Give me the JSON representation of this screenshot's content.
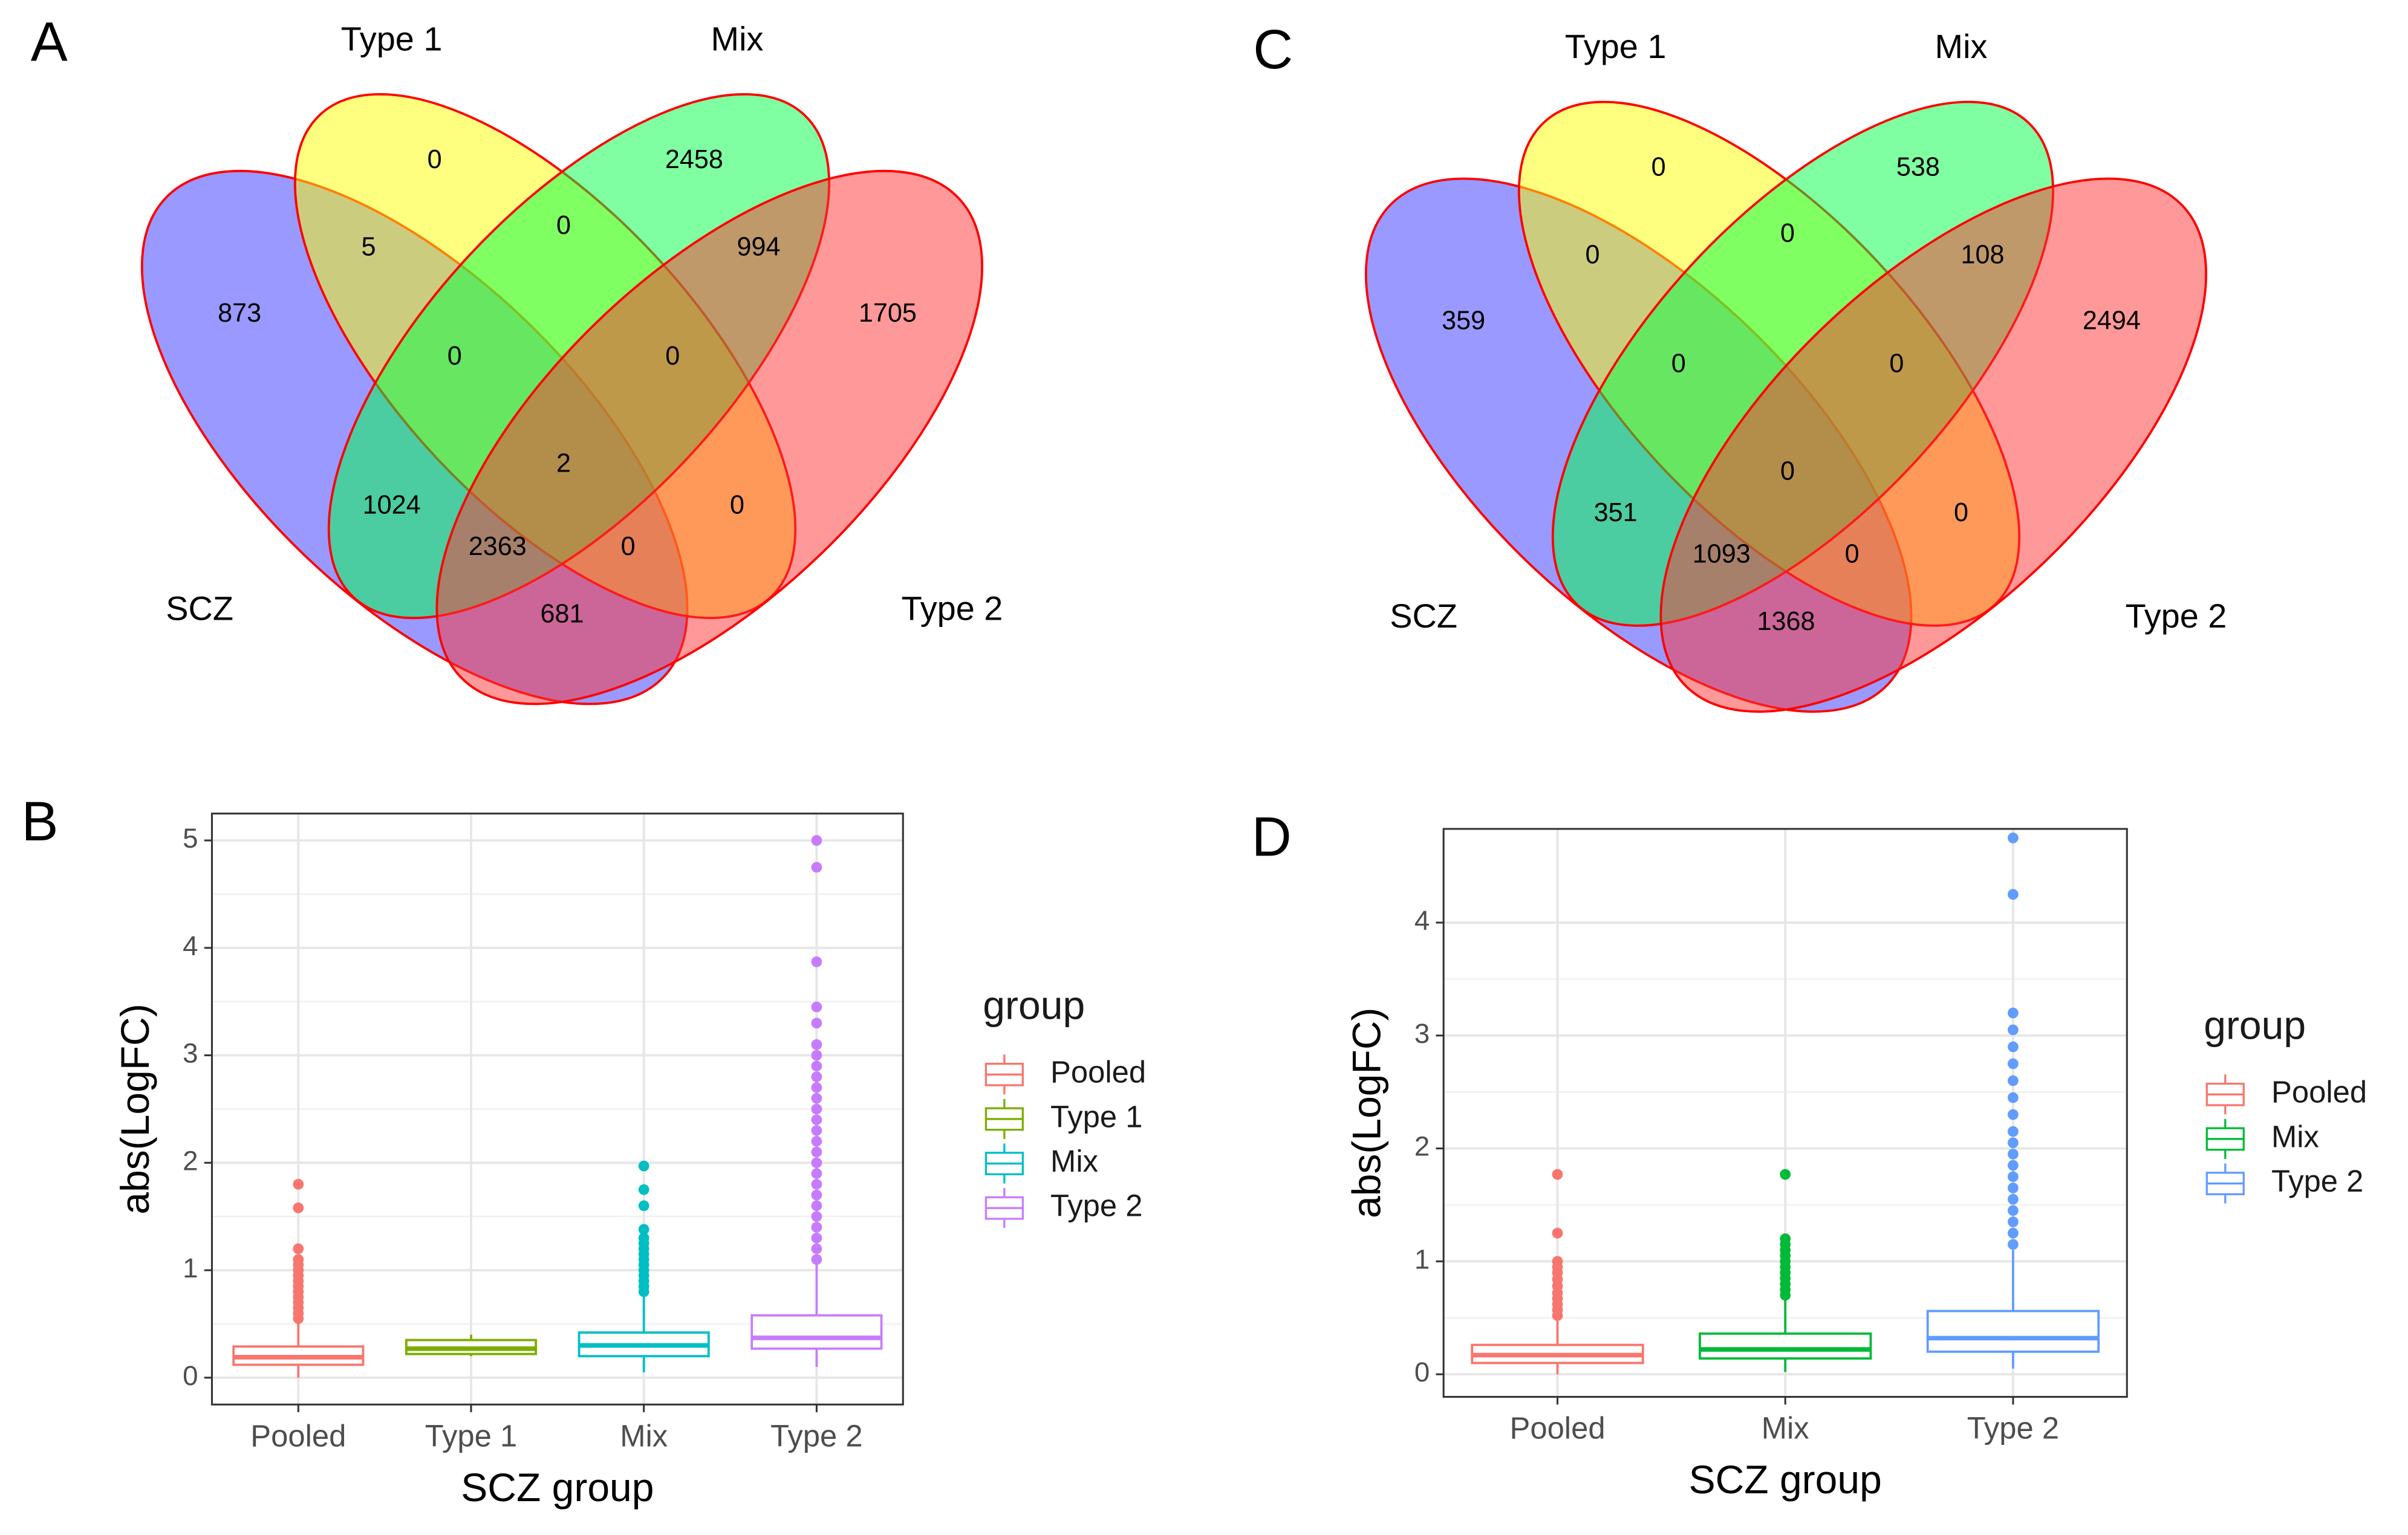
{
  "chart_data": [
    {
      "type": "venn",
      "panel": "A",
      "sets": [
        {
          "name": "SCZ",
          "color": "#3333ff"
        },
        {
          "name": "Type 1",
          "color": "#ffff00"
        },
        {
          "name": "Mix",
          "color": "#00ff44"
        },
        {
          "name": "Type 2",
          "color": "#ff3333"
        }
      ],
      "values": [
        0,
        2458,
        5,
        0,
        994,
        873,
        1705,
        0,
        0,
        2,
        1024,
        0,
        2363,
        0,
        681
      ]
    },
    {
      "type": "venn",
      "panel": "C",
      "sets": [
        {
          "name": "SCZ",
          "color": "#3333ff"
        },
        {
          "name": "Type 1",
          "color": "#ffff00"
        },
        {
          "name": "Mix",
          "color": "#00ff44"
        },
        {
          "name": "Type 2",
          "color": "#ff3333"
        }
      ],
      "values": [
        0,
        538,
        0,
        0,
        108,
        359,
        2494,
        0,
        0,
        0,
        351,
        0,
        1093,
        0,
        1368
      ]
    },
    {
      "type": "box",
      "panel": "B",
      "x_label": "SCZ group",
      "y_label": "abs(LogFC)",
      "legend_title": "group",
      "categories": [
        "Pooled",
        "Type 1",
        "Mix",
        "Type 2"
      ],
      "ylim": [
        -0.25,
        5.25
      ],
      "yticks": [
        0,
        1,
        2,
        3,
        4,
        5
      ],
      "grid": true,
      "series": [
        {
          "name": "Pooled",
          "color": "#f8766d",
          "min": 0,
          "q1": 0.12,
          "median": 0.19,
          "q3": 0.29,
          "max": 0.52,
          "outliers": [
            0.55,
            0.6,
            0.65,
            0.7,
            0.75,
            0.8,
            0.85,
            0.9,
            0.95,
            1.0,
            1.05,
            1.1,
            1.2,
            1.58,
            1.8
          ]
        },
        {
          "name": "Type 1",
          "color": "#7cae00",
          "min": 0.2,
          "q1": 0.22,
          "median": 0.27,
          "q3": 0.35,
          "max": 0.4,
          "outliers": []
        },
        {
          "name": "Mix",
          "color": "#00bfc4",
          "min": 0.05,
          "q1": 0.2,
          "median": 0.3,
          "q3": 0.42,
          "max": 0.75,
          "outliers": [
            0.8,
            0.85,
            0.9,
            0.95,
            1.0,
            1.05,
            1.1,
            1.15,
            1.2,
            1.25,
            1.3,
            1.38,
            1.6,
            1.75,
            1.97
          ]
        },
        {
          "name": "Type 2",
          "color": "#c77cff",
          "min": 0.1,
          "q1": 0.27,
          "median": 0.37,
          "q3": 0.58,
          "max": 1.05,
          "outliers": [
            1.1,
            1.2,
            1.3,
            1.4,
            1.5,
            1.6,
            1.7,
            1.8,
            1.9,
            2.0,
            2.1,
            2.2,
            2.3,
            2.4,
            2.5,
            2.6,
            2.7,
            2.8,
            2.9,
            3.0,
            3.1,
            3.3,
            3.45,
            3.87,
            4.75,
            5.0
          ]
        }
      ]
    },
    {
      "type": "box",
      "panel": "D",
      "x_label": "SCZ group",
      "y_label": "abs(LogFC)",
      "legend_title": "group",
      "categories": [
        "Pooled",
        "Mix",
        "Type 2"
      ],
      "ylim": [
        -0.2,
        4.83
      ],
      "yticks": [
        0,
        1,
        2,
        3,
        4
      ],
      "grid": true,
      "series": [
        {
          "name": "Pooled",
          "color": "#f8766d",
          "min": 0,
          "q1": 0.1,
          "median": 0.17,
          "q3": 0.26,
          "max": 0.5,
          "outliers": [
            0.52,
            0.57,
            0.62,
            0.67,
            0.72,
            0.78,
            0.84,
            0.9,
            0.95,
            1.0,
            1.25,
            1.77
          ]
        },
        {
          "name": "Mix",
          "color": "#00ba38",
          "min": 0.02,
          "q1": 0.14,
          "median": 0.22,
          "q3": 0.36,
          "max": 0.68,
          "outliers": [
            0.7,
            0.75,
            0.8,
            0.85,
            0.9,
            0.95,
            1.0,
            1.05,
            1.1,
            1.15,
            1.2,
            1.77
          ]
        },
        {
          "name": "Type 2",
          "color": "#619cff",
          "min": 0.05,
          "q1": 0.2,
          "median": 0.32,
          "q3": 0.56,
          "max": 1.1,
          "outliers": [
            1.15,
            1.25,
            1.35,
            1.45,
            1.55,
            1.65,
            1.75,
            1.85,
            1.95,
            2.05,
            2.15,
            2.3,
            2.45,
            2.6,
            2.75,
            2.9,
            3.05,
            3.2,
            4.25,
            4.75
          ]
        }
      ]
    }
  ]
}
